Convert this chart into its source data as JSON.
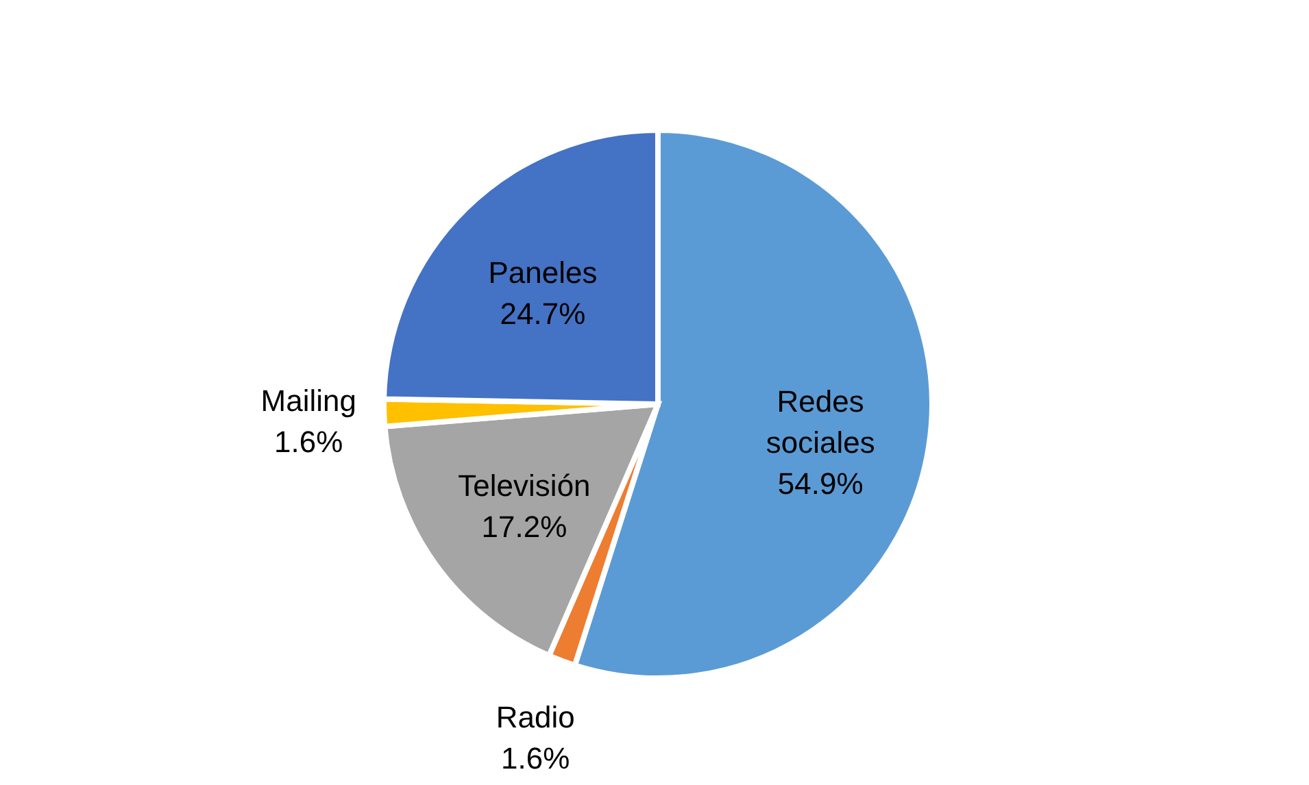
{
  "chart_data": {
    "type": "pie",
    "categories": [
      "Redes sociales",
      "Radio",
      "Televisión",
      "Mailing",
      "Paneles"
    ],
    "values": [
      54.9,
      1.6,
      17.2,
      1.6,
      24.7
    ],
    "colors": [
      "#5b9bd5",
      "#ed7d31",
      "#a5a5a5",
      "#ffc000",
      "#4472c4"
    ],
    "value_labels": [
      "54.9%",
      "1.6%",
      "17.2%",
      "1.6%",
      "24.7%"
    ]
  }
}
